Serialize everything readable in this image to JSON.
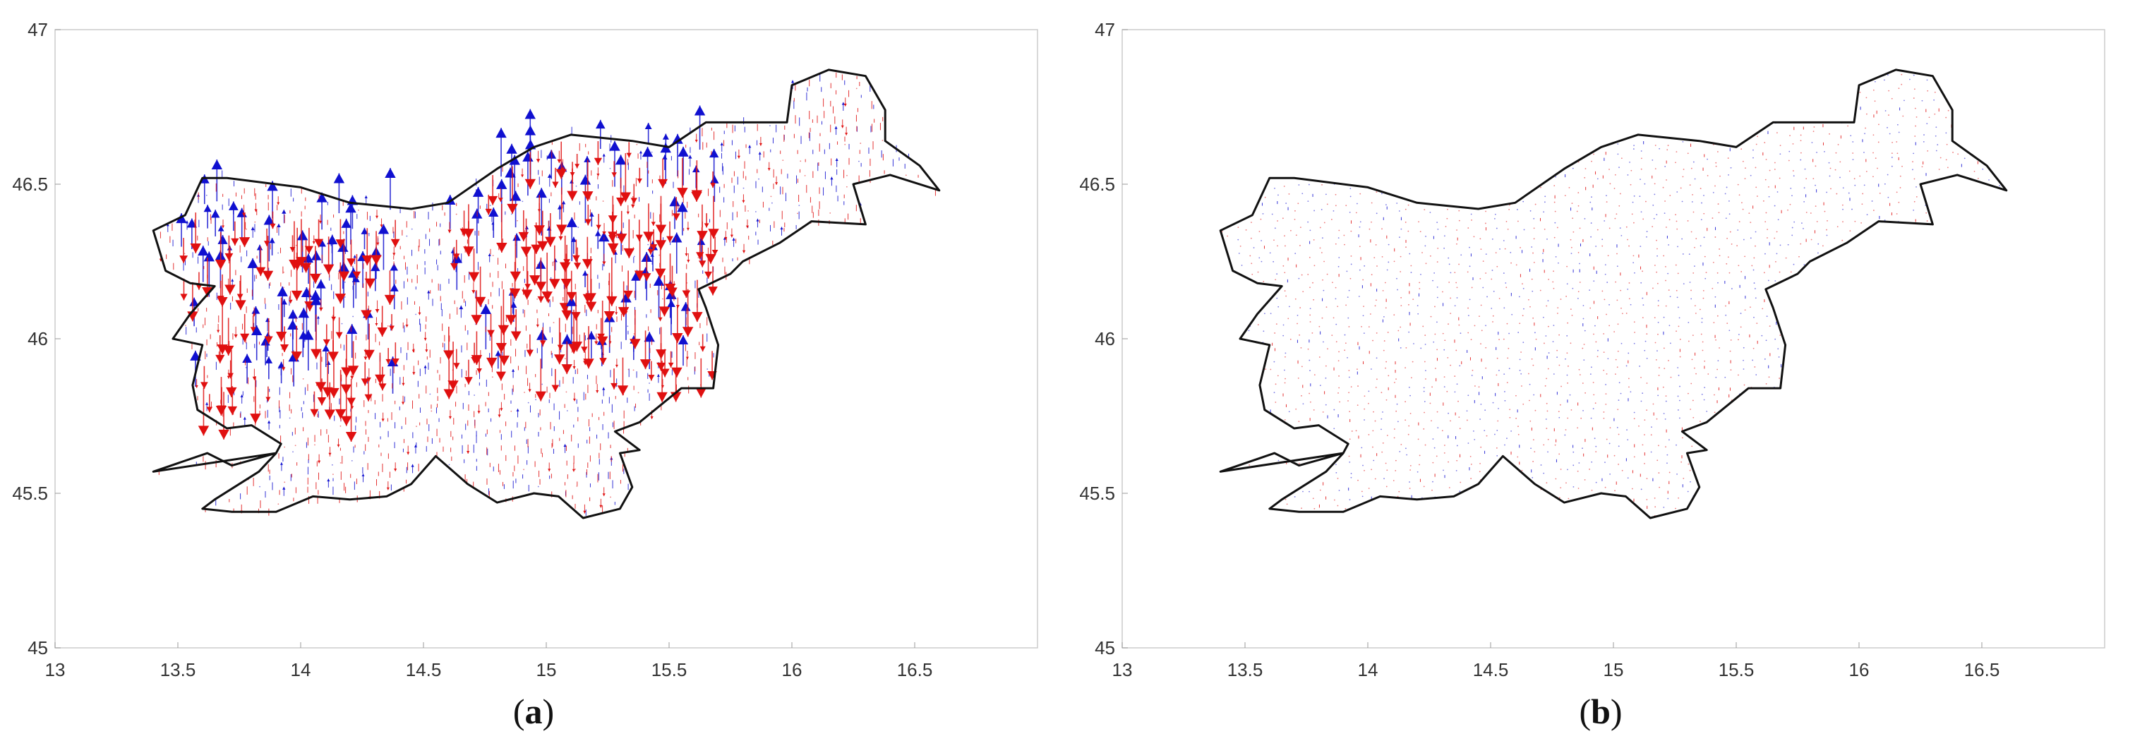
{
  "panels": [
    {
      "id": "a",
      "caption_open": "(",
      "caption_letter": "a",
      "caption_close": ")",
      "xlim": [
        13,
        17
      ],
      "ylim": [
        45,
        47
      ],
      "x_ticks": [
        "13",
        "13.5",
        "14",
        "14.5",
        "15",
        "15.5",
        "16",
        "16.5"
      ],
      "y_ticks": [
        "45",
        "45.5",
        "46",
        "46.5",
        "47"
      ],
      "vector_scale": 1.0
    },
    {
      "id": "b",
      "caption_open": "(",
      "caption_letter": "b",
      "caption_close": ")",
      "xlim": [
        13,
        17
      ],
      "ylim": [
        45,
        47
      ],
      "x_ticks": [
        "13",
        "13.5",
        "14",
        "14.5",
        "15",
        "15.5",
        "16",
        "16.5"
      ],
      "y_ticks": [
        "45",
        "45.5",
        "46",
        "46.5",
        "47"
      ],
      "vector_scale": 0.35
    }
  ],
  "colors": {
    "upward": "#1010d0",
    "downward": "#e01010",
    "border": "#111111",
    "frame": "#cccccc"
  }
}
